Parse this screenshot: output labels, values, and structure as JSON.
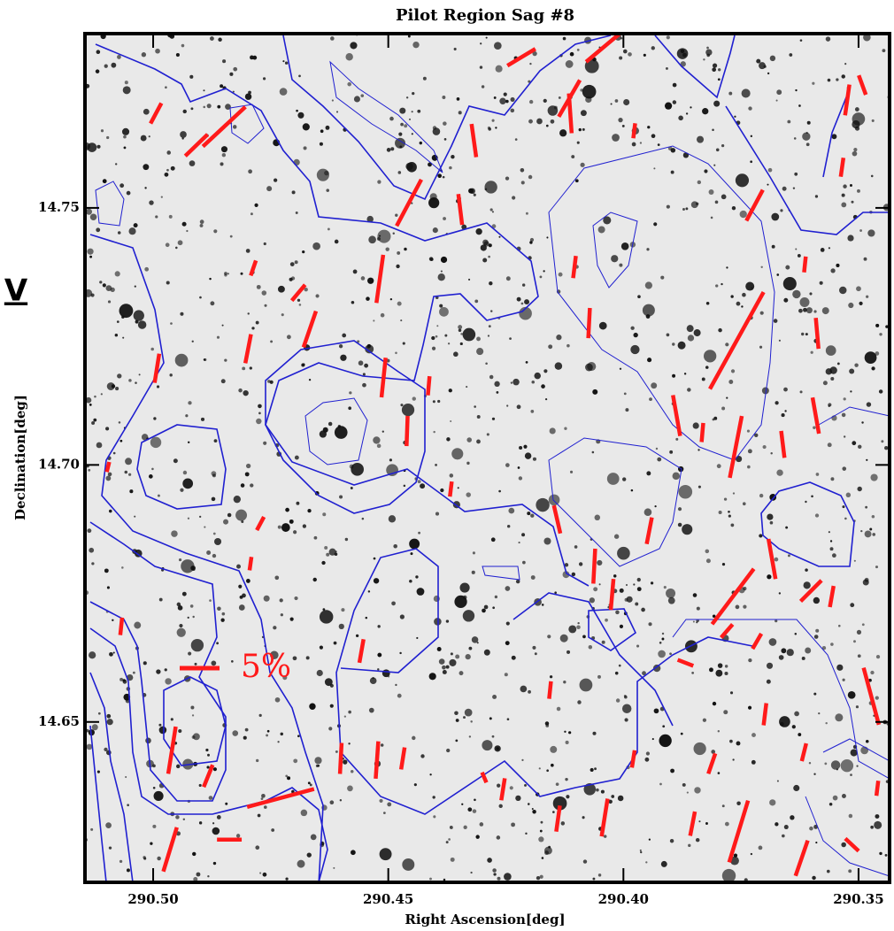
{
  "chart_data": {
    "type": "vector",
    "title": "Pilot Region Sag #8",
    "side_label": "V",
    "xlabel": "Right Ascension[deg]",
    "ylabel": "Declination[deg]",
    "xlim": [
      290.5145,
      290.3434
    ],
    "ylim": [
      14.6188,
      14.7839
    ],
    "xticks": [
      {
        "value": 290.5,
        "label": "290.50"
      },
      290.45,
      {
        "value": 290.4,
        "label": "290.40"
      },
      290.35
    ],
    "yticks": [
      14.75,
      {
        "value": 14.7,
        "label": "14.70"
      },
      14.65
    ],
    "color": "#ff1a1a",
    "scale_bar": {
      "value": 5,
      "label": "5%"
    },
    "x": [
      290.4217,
      290.4043,
      290.4115,
      290.4113,
      290.4994,
      290.4849,
      290.4908,
      290.4318,
      290.3977,
      290.3524,
      290.3492,
      290.3535,
      290.4456,
      290.4347,
      290.3721,
      290.4787,
      290.4518,
      290.4691,
      290.4667,
      290.4104,
      290.4073,
      290.3759,
      290.3614,
      290.3588,
      290.4798,
      290.4992,
      290.451,
      290.4414,
      290.446,
      290.3887,
      290.3832,
      290.3761,
      290.3661,
      290.3591,
      290.5096,
      290.4367,
      290.4772,
      290.4141,
      290.3945,
      290.4062,
      290.4024,
      290.3684,
      290.3767,
      290.3601,
      290.3557,
      290.4793,
      290.5068,
      290.378,
      290.3716,
      290.4557,
      290.3868,
      290.3473,
      290.4156,
      290.3699,
      290.496,
      290.4601,
      290.4524,
      290.4469,
      290.4883,
      290.4729,
      290.4256,
      290.4296,
      290.3979,
      290.3812,
      290.4139,
      290.404,
      290.3853,
      290.3755,
      290.4964,
      290.4838,
      290.3621,
      290.3514,
      290.346,
      290.3616
    ],
    "y": [
      14.7793,
      14.7812,
      14.7713,
      14.7684,
      14.7684,
      14.7658,
      14.7622,
      14.7631,
      14.765,
      14.771,
      14.7739,
      14.7579,
      14.751,
      14.7497,
      14.7505,
      14.7383,
      14.7362,
      14.7335,
      14.7264,
      14.7385,
      14.7276,
      14.7242,
      14.739,
      14.7256,
      14.7226,
      14.7188,
      14.717,
      14.7154,
      14.7066,
      14.7096,
      14.7063,
      14.7035,
      14.704,
      14.7096,
      14.6996,
      14.6953,
      14.6886,
      14.6894,
      14.6872,
      14.6803,
      14.6748,
      14.6817,
      14.6744,
      14.6755,
      14.6744,
      14.6808,
      14.6686,
      14.6677,
      14.6657,
      14.6638,
      14.6615,
      14.655,
      14.6562,
      14.6515,
      14.6445,
      14.6429,
      14.6426,
      14.6429,
      14.6395,
      14.6352,
      14.6369,
      14.6392,
      14.6428,
      14.6419,
      14.6312,
      14.6314,
      14.6302,
      14.6287,
      14.6252,
      14.6271,
      14.6235,
      14.6261,
      14.6371,
      14.6441
    ],
    "p": [
      4.1,
      5.6,
      5.3,
      5.0,
      2.9,
      7.3,
      3.9,
      4.2,
      1.9,
      3.9,
      2.6,
      2.4,
      6.6,
      3.9,
      4.4,
      2.0,
      6.1,
      2.6,
      4.8,
      2.8,
      3.8,
      13.9,
      2.0,
      3.9,
      3.7,
      3.7,
      5.0,
      2.4,
      3.8,
      5.2,
      2.4,
      7.9,
      3.4,
      4.6,
      1.3,
      1.9,
      1.9,
      3.6,
      3.4,
      4.4,
      3.9,
      5.1,
      8.7,
      3.7,
      2.7,
      1.7,
      2.2,
      2.2,
      2.2,
      3.0,
      2.1,
      7.4,
      2.2,
      2.8,
      6.0,
      3.9,
      4.7,
      2.8,
      3.0,
      8.7,
      2.8,
      1.4,
      2.2,
      2.7,
      3.3,
      4.8,
      3.1,
      8.1,
      5.8,
      3.1,
      4.7,
      2.3,
      1.9,
      2.3
    ],
    "angle": [
      -59,
      -50,
      -30,
      4,
      -28,
      -47,
      -46,
      8,
      -7,
      -8,
      20,
      -8,
      -28,
      7,
      -28,
      -19,
      -8,
      -40,
      -19,
      -7,
      -3,
      -29,
      -6,
      5,
      -11,
      -9,
      -6,
      -5,
      -2,
      10,
      -5,
      -11,
      7,
      10,
      -14,
      -7,
      -28,
      13,
      -11,
      -3,
      -5,
      10,
      -37,
      -45,
      -10,
      -8,
      -6,
      -41,
      -30,
      -10,
      69,
      15,
      -6,
      -7,
      -9,
      -3,
      -4,
      -9,
      -22,
      -75,
      -9,
      23,
      -9,
      -19,
      -8,
      -9,
      -11,
      -17,
      -17,
      90,
      -19,
      47,
      -7,
      -14
    ]
  }
}
